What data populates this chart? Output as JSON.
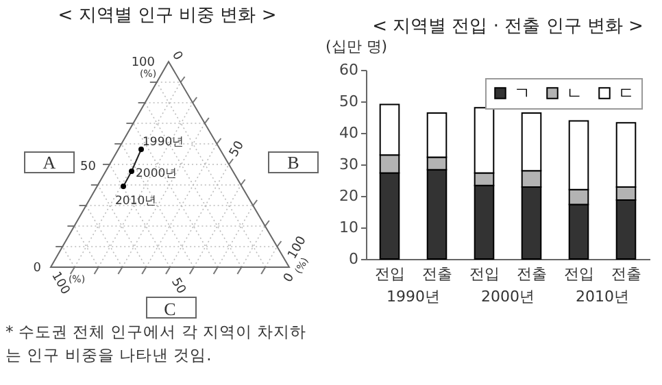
{
  "chart_data": [
    {
      "type": "other",
      "title": "< 지역별 인구 비중 변화 >",
      "annotations": [
        "A",
        "B",
        "C",
        "1990년",
        "2000년",
        "2010년",
        "100",
        "(%)",
        "0",
        "50",
        "50",
        "0",
        "100",
        "(%)",
        "0",
        "100",
        "(%)",
        "50",
        "* 수도권 전체 인구에서 각 지역이 차지하는 인구 비중을 나타낸 것임."
      ]
    },
    {
      "type": "bar",
      "title": "< 지역별 전입 · 전출 인구 변화 >",
      "ylabel": "(십만 명)",
      "categories": [
        "전입",
        "전출",
        "전입",
        "전출",
        "전입",
        "전출"
      ],
      "annotations": [
        "1990년",
        "2000년",
        "2010년"
      ],
      "stacked": true,
      "series": [
        {
          "name": "ㄱ",
          "color": "#333333",
          "values": [
            27.3,
            28.3,
            23.3,
            22.8,
            17.3,
            18.7
          ]
        },
        {
          "name": "ㄴ",
          "color": "#b3b3b3",
          "values": [
            5.7,
            4.0,
            4.0,
            5.2,
            4.7,
            4.1
          ]
        },
        {
          "name": "ㄷ",
          "color": "#ffffff",
          "values": [
            16.0,
            14.0,
            20.7,
            18.3,
            21.8,
            20.4
          ]
        }
      ],
      "ylim": [
        0,
        60
      ],
      "yticks": [
        0,
        10,
        20,
        30,
        40,
        50,
        60
      ],
      "grid": false,
      "legend": "top right"
    }
  ]
}
